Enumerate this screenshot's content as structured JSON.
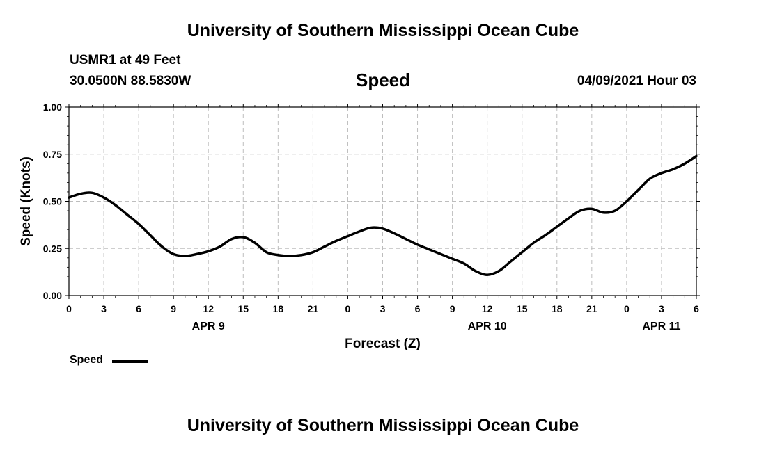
{
  "header": {
    "top_title": "University of Southern Mississippi Ocean Cube",
    "station": "USMR1 at 49 Feet",
    "coordinates": "30.0500N  88.5830W",
    "chart_title": "Speed",
    "datetime": "04/09/2021 Hour 03",
    "bottom_title": "University of Southern Mississippi Ocean Cube"
  },
  "legend": {
    "label": "Speed",
    "placement": "bottom-left"
  },
  "chart_data": {
    "type": "line",
    "title": "Speed",
    "xlabel": "Forecast (Z)",
    "ylabel": "Speed (Knots)",
    "ylim": [
      0,
      1
    ],
    "yticks": [
      "0.00",
      "0.25",
      "0.50",
      "0.75",
      "1.00"
    ],
    "xticks": [
      "0",
      "3",
      "6",
      "9",
      "12",
      "15",
      "18",
      "21",
      "0",
      "3",
      "6",
      "9",
      "12",
      "15",
      "18",
      "21",
      "0",
      "3",
      "6"
    ],
    "xlim_hours": [
      0,
      54
    ],
    "date_labels": [
      {
        "label": "APR 9",
        "hour": 12
      },
      {
        "label": "APR 10",
        "hour": 36
      },
      {
        "label": "APR 11",
        "hour": 51
      }
    ],
    "grid": true,
    "line_color": "#000000",
    "series": [
      {
        "name": "Speed",
        "x": [
          0,
          1,
          2,
          3,
          4,
          5,
          6,
          7,
          8,
          9,
          10,
          11,
          12,
          13,
          14,
          15,
          16,
          17,
          18,
          19,
          20,
          21,
          22,
          23,
          24,
          25,
          26,
          27,
          28,
          29,
          30,
          31,
          32,
          33,
          34,
          35,
          36,
          37,
          38,
          39,
          40,
          41,
          42,
          43,
          44,
          45,
          46,
          47,
          48,
          49,
          50,
          51,
          52,
          53,
          54
        ],
        "values": [
          0.52,
          0.54,
          0.545,
          0.52,
          0.48,
          0.43,
          0.38,
          0.32,
          0.26,
          0.22,
          0.21,
          0.22,
          0.235,
          0.26,
          0.3,
          0.31,
          0.28,
          0.23,
          0.215,
          0.21,
          0.215,
          0.23,
          0.26,
          0.29,
          0.315,
          0.34,
          0.36,
          0.355,
          0.33,
          0.3,
          0.27,
          0.245,
          0.22,
          0.195,
          0.17,
          0.13,
          0.11,
          0.13,
          0.18,
          0.23,
          0.28,
          0.32,
          0.365,
          0.41,
          0.45,
          0.46,
          0.44,
          0.45,
          0.5,
          0.56,
          0.62,
          0.65,
          0.67,
          0.7,
          0.74
        ]
      }
    ]
  }
}
